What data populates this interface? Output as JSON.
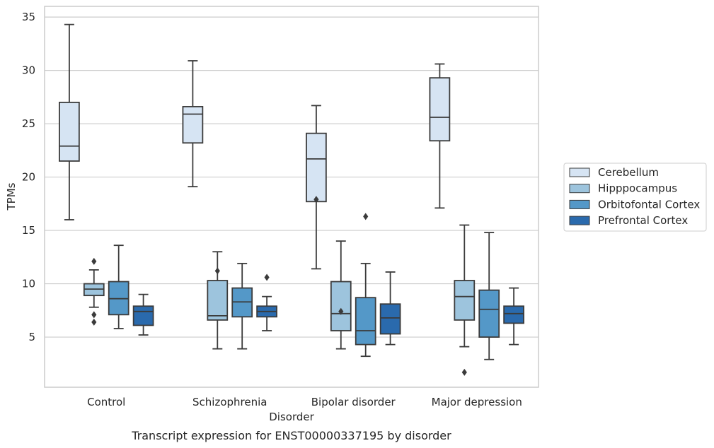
{
  "chart_data": {
    "type": "box",
    "title": "",
    "caption": "Transcript expression for ENST00000337195 by disorder",
    "xlabel": "Disorder",
    "ylabel": "TPMs",
    "ylim": [
      0.3,
      36
    ],
    "yticks": [
      5,
      10,
      15,
      20,
      25,
      30,
      35
    ],
    "grid": "horizontal",
    "legend_position": "right",
    "categories": [
      "Control",
      "Schizophrenia",
      "Bipolar disorder",
      "Major depression"
    ],
    "series": [
      {
        "name": "Cerebellum",
        "color": "#d6e4f3",
        "boxes": [
          {
            "whisker_low": 16.0,
            "q1": 21.5,
            "median": 22.9,
            "q3": 27.0,
            "whisker_high": 34.3,
            "outliers": []
          },
          {
            "whisker_low": 19.1,
            "q1": 23.2,
            "median": 25.9,
            "q3": 26.6,
            "whisker_high": 30.9,
            "outliers": []
          },
          {
            "whisker_low": 11.4,
            "q1": 17.7,
            "median": 21.7,
            "q3": 24.1,
            "whisker_high": 26.7,
            "outliers": []
          },
          {
            "whisker_low": 17.1,
            "q1": 23.4,
            "median": 25.6,
            "q3": 29.3,
            "whisker_high": 30.6,
            "outliers": []
          }
        ]
      },
      {
        "name": "Hipppocampus",
        "color": "#9dc4dd",
        "boxes": [
          {
            "whisker_low": 7.8,
            "q1": 8.9,
            "median": 9.5,
            "q3": 10.0,
            "whisker_high": 11.3,
            "outliers": [
              12.1,
              7.1,
              6.4
            ]
          },
          {
            "whisker_low": 3.9,
            "q1": 6.6,
            "median": 7.0,
            "q3": 10.3,
            "whisker_high": 13.0,
            "outliers": [
              11.2
            ]
          },
          {
            "whisker_low": 3.9,
            "q1": 5.6,
            "median": 7.2,
            "q3": 10.2,
            "whisker_high": 14.0,
            "outliers": [
              7.4
            ]
          },
          {
            "whisker_low": 4.1,
            "q1": 6.6,
            "median": 8.8,
            "q3": 10.3,
            "whisker_high": 15.5,
            "outliers": [
              1.7
            ]
          }
        ]
      },
      {
        "name": "Orbitofontal Cortex",
        "color": "#5498c8",
        "boxes": [
          {
            "whisker_low": 5.8,
            "q1": 7.1,
            "median": 8.6,
            "q3": 10.2,
            "whisker_high": 13.6,
            "outliers": []
          },
          {
            "whisker_low": 3.9,
            "q1": 6.9,
            "median": 8.3,
            "q3": 9.6,
            "whisker_high": 11.9,
            "outliers": []
          },
          {
            "whisker_low": 3.2,
            "q1": 4.3,
            "median": 5.6,
            "q3": 8.7,
            "whisker_high": 11.9,
            "outliers": [
              16.3
            ]
          },
          {
            "whisker_low": 2.9,
            "q1": 5.0,
            "median": 7.6,
            "q3": 9.4,
            "whisker_high": 14.8,
            "outliers": []
          }
        ]
      },
      {
        "name": "Prefrontal Cortex",
        "color": "#2a6aad",
        "boxes": [
          {
            "whisker_low": 5.2,
            "q1": 6.1,
            "median": 7.4,
            "q3": 7.9,
            "whisker_high": 9.0,
            "outliers": []
          },
          {
            "whisker_low": 5.6,
            "q1": 6.9,
            "median": 7.4,
            "q3": 7.9,
            "whisker_high": 8.8,
            "outliers": [
              10.6
            ]
          },
          {
            "whisker_low": 4.3,
            "q1": 5.3,
            "median": 6.8,
            "q3": 8.1,
            "whisker_high": 11.1,
            "outliers": []
          },
          {
            "whisker_low": 4.3,
            "q1": 6.3,
            "median": 7.2,
            "q3": 7.9,
            "whisker_high": 9.6,
            "outliers": []
          }
        ]
      }
    ],
    "extra_outliers": [
      {
        "category": "Bipolar disorder",
        "series": "Cerebellum",
        "value": 17.9
      }
    ]
  }
}
